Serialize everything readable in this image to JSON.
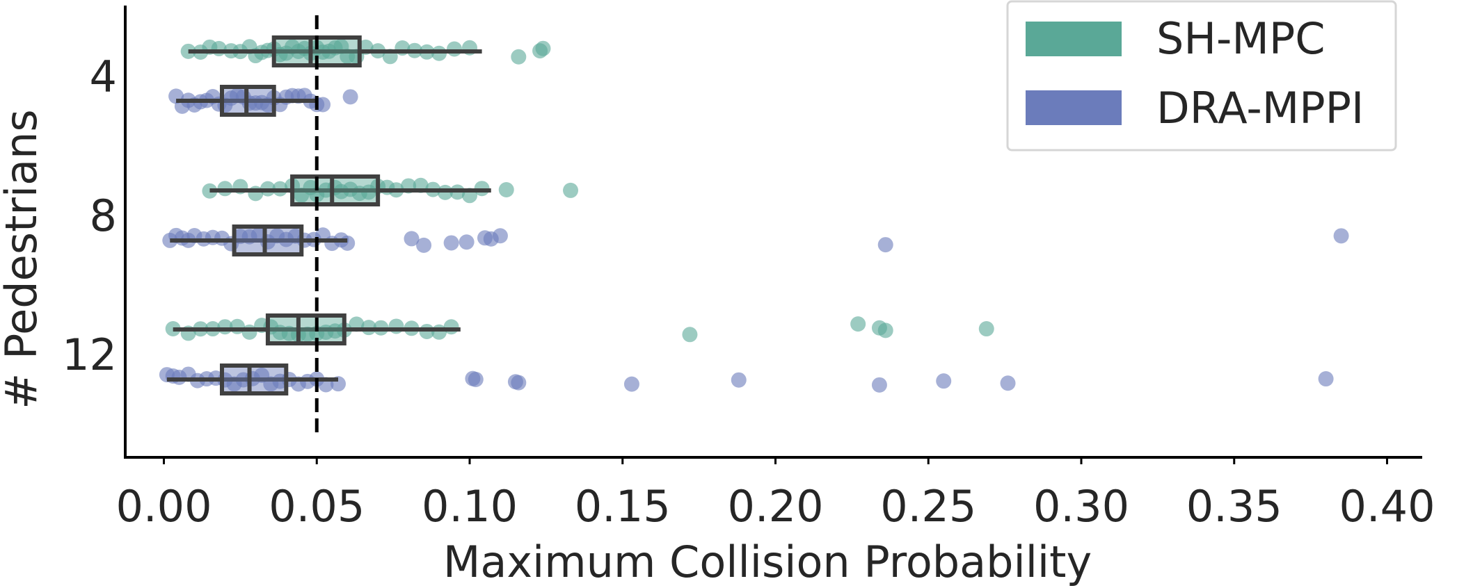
{
  "chart_data": {
    "type": "strip-box",
    "orientation": "horizontal",
    "xlabel": "Maximum Collision Probability",
    "ylabel": "# Pedestrians",
    "xlim": [
      -0.01,
      0.4
    ],
    "xticks": [
      0.0,
      0.05,
      0.1,
      0.15,
      0.2,
      0.25,
      0.3,
      0.35,
      0.4
    ],
    "xtick_labels": [
      "0.00",
      "0.05",
      "0.10",
      "0.15",
      "0.20",
      "0.25",
      "0.30",
      "0.35",
      "0.40"
    ],
    "categories": [
      "4",
      "8",
      "12"
    ],
    "reference_line": {
      "x": 0.05,
      "style": "dashed",
      "color": "#000000"
    },
    "legend": {
      "position": "top-right"
    },
    "grid": false,
    "series": [
      {
        "name": "SH-MPC",
        "color": "#5aa897",
        "boxes": [
          {
            "category": "4",
            "whisker_low": 0.008,
            "q1": 0.036,
            "median": 0.048,
            "q3": 0.064,
            "whisker_high": 0.104
          },
          {
            "category": "8",
            "whisker_low": 0.015,
            "q1": 0.042,
            "median": 0.055,
            "q3": 0.07,
            "whisker_high": 0.107
          },
          {
            "category": "12",
            "whisker_low": 0.003,
            "q1": 0.034,
            "median": 0.044,
            "q3": 0.059,
            "whisker_high": 0.097
          }
        ],
        "points": [
          {
            "category": "4",
            "x": [
              0.008,
              0.012,
              0.015,
              0.018,
              0.022,
              0.025,
              0.028,
              0.03,
              0.032,
              0.034,
              0.036,
              0.038,
              0.04,
              0.042,
              0.044,
              0.046,
              0.048,
              0.05,
              0.052,
              0.054,
              0.056,
              0.058,
              0.06,
              0.063,
              0.066,
              0.07,
              0.074,
              0.078,
              0.082,
              0.086,
              0.09,
              0.095,
              0.1,
              0.116,
              0.123,
              0.124
            ]
          },
          {
            "category": "8",
            "x": [
              0.015,
              0.02,
              0.025,
              0.03,
              0.034,
              0.038,
              0.042,
              0.045,
              0.048,
              0.05,
              0.053,
              0.056,
              0.058,
              0.061,
              0.064,
              0.067,
              0.07,
              0.073,
              0.076,
              0.08,
              0.084,
              0.088,
              0.092,
              0.096,
              0.1,
              0.104,
              0.112,
              0.133
            ]
          },
          {
            "category": "12",
            "x": [
              0.003,
              0.008,
              0.012,
              0.016,
              0.02,
              0.024,
              0.028,
              0.032,
              0.035,
              0.038,
              0.041,
              0.044,
              0.047,
              0.05,
              0.053,
              0.056,
              0.059,
              0.063,
              0.067,
              0.071,
              0.076,
              0.081,
              0.086,
              0.09,
              0.094,
              0.172,
              0.227,
              0.234,
              0.236,
              0.269
            ]
          }
        ]
      },
      {
        "name": "DRA-MPPI",
        "color": "#6b7cbb",
        "boxes": [
          {
            "category": "4",
            "whisker_low": 0.004,
            "q1": 0.019,
            "median": 0.027,
            "q3": 0.036,
            "whisker_high": 0.05
          },
          {
            "category": "8",
            "whisker_low": 0.002,
            "q1": 0.023,
            "median": 0.033,
            "q3": 0.045,
            "whisker_high": 0.06
          },
          {
            "category": "12",
            "whisker_low": 0.001,
            "q1": 0.019,
            "median": 0.028,
            "q3": 0.04,
            "whisker_high": 0.057
          }
        ],
        "points": [
          {
            "category": "4",
            "x": [
              0.004,
              0.006,
              0.008,
              0.01,
              0.012,
              0.014,
              0.016,
              0.018,
              0.02,
              0.022,
              0.024,
              0.026,
              0.028,
              0.03,
              0.032,
              0.034,
              0.036,
              0.038,
              0.04,
              0.042,
              0.044,
              0.046,
              0.048,
              0.05,
              0.052,
              0.061
            ]
          },
          {
            "category": "8",
            "x": [
              0.002,
              0.004,
              0.006,
              0.008,
              0.01,
              0.013,
              0.016,
              0.019,
              0.022,
              0.025,
              0.028,
              0.031,
              0.034,
              0.037,
              0.04,
              0.043,
              0.046,
              0.049,
              0.052,
              0.055,
              0.058,
              0.06,
              0.081,
              0.085,
              0.094,
              0.099,
              0.105,
              0.107,
              0.11,
              0.236,
              0.385
            ]
          },
          {
            "category": "12",
            "x": [
              0.001,
              0.003,
              0.005,
              0.008,
              0.011,
              0.014,
              0.017,
              0.02,
              0.023,
              0.026,
              0.029,
              0.032,
              0.035,
              0.038,
              0.041,
              0.044,
              0.047,
              0.05,
              0.053,
              0.057,
              0.101,
              0.102,
              0.115,
              0.116,
              0.153,
              0.188,
              0.234,
              0.255,
              0.276,
              0.38
            ]
          }
        ]
      }
    ]
  }
}
